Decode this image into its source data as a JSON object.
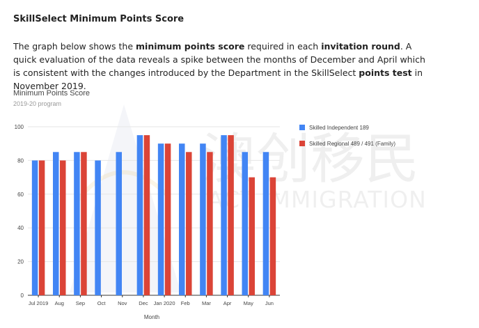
{
  "article": {
    "title": "SkillSelect Minimum Points Score",
    "intro": {
      "p1": "The graph below shows the ",
      "b1": "minimum points score",
      "p2": " required in each ",
      "b2": "invitation round",
      "p3": ". A quick evaluation of the data reveals a spike between the months of December and April which is consistent with the changes introduced by the Department in the SkillSelect ",
      "b3": "points test",
      "p4": " in November 2019."
    }
  },
  "watermark": {
    "cn_text": "澳创移民",
    "en_text": "ACT IMMIGRATION"
  },
  "chart_data": {
    "type": "bar",
    "title": "Minimum Points Score",
    "subtitle": "2019-20 program",
    "xlabel": "Month",
    "ylabel": "",
    "categories": [
      "Jul 2019",
      "Aug",
      "Sep",
      "Oct",
      "Nov",
      "Dec",
      "Jan 2020",
      "Feb",
      "Mar",
      "Apr",
      "May",
      "Jun"
    ],
    "yticks": [
      0,
      20,
      40,
      60,
      80,
      100
    ],
    "ylim": [
      0,
      100
    ],
    "grid": true,
    "legend_position": "right",
    "series": [
      {
        "name": "Skilled Independent 189",
        "color": "#4285f4",
        "values": [
          80,
          85,
          85,
          80,
          85,
          95,
          90,
          90,
          90,
          95,
          85,
          85
        ]
      },
      {
        "name": "Skilled Regional 489 / 491 (Family)",
        "color": "#db4437",
        "values": [
          80,
          80,
          85,
          null,
          null,
          95,
          90,
          85,
          85,
          95,
          70,
          70
        ]
      }
    ]
  }
}
